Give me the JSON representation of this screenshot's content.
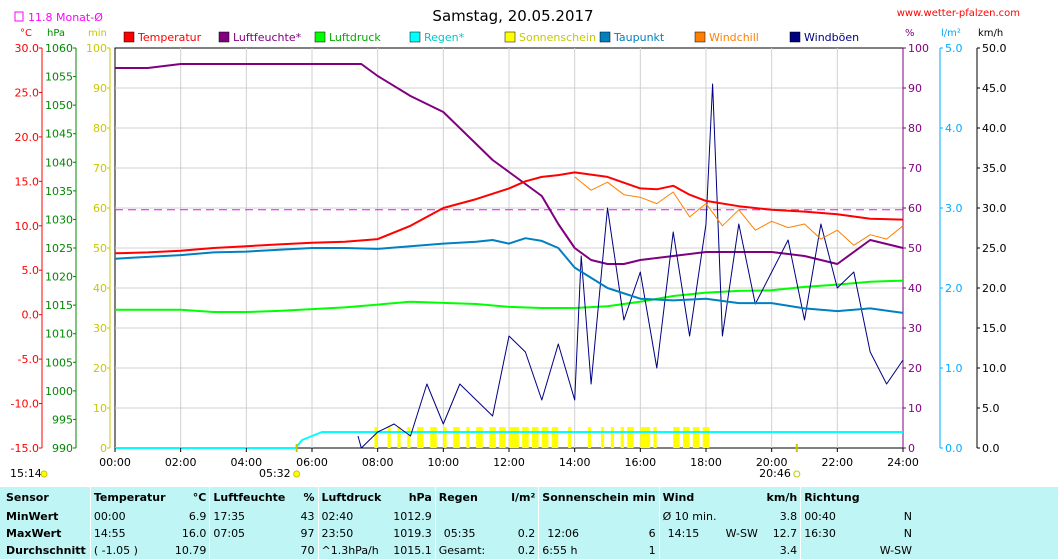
{
  "header": {
    "title": "Samstag, 20.05.2017",
    "site": "www.wetter-pfalzen.com",
    "month_avg": "11.8 Monat-Ø"
  },
  "units": {
    "temp": "°C",
    "press": "hPa",
    "sun": "min",
    "pct": "%",
    "rain": "l/m²",
    "wind": "km/h"
  },
  "legend": [
    {
      "label": "Temperatur",
      "color": "#ff0000"
    },
    {
      "label": "Luftfeuchte*",
      "color": "#800080"
    },
    {
      "label": "Luftdruck",
      "color": "#00ff00"
    },
    {
      "label": "Regen*",
      "color": "#00ffff"
    },
    {
      "label": "Sonnenschein",
      "color": "#ffff00"
    },
    {
      "label": "Taupunkt",
      "color": "#0080c0"
    },
    {
      "label": "Windchill",
      "color": "#ff8000"
    },
    {
      "label": "Windböen",
      "color": "#000080"
    }
  ],
  "axes": {
    "temp_ticks": [
      "30.0",
      "25.0",
      "20.0",
      "15.0",
      "10.0",
      "5.0",
      "0.0",
      "-5.0",
      "-10.0",
      "-15.0"
    ],
    "press_ticks": [
      "1060",
      "1055",
      "1050",
      "1045",
      "1040",
      "1035",
      "1030",
      "1025",
      "1020",
      "1015",
      "1010",
      "1005",
      "1000",
      "995",
      "990"
    ],
    "sun_ticks": [
      "100",
      "90",
      "80",
      "70",
      "60",
      "50",
      "40",
      "30",
      "20",
      "10",
      "0"
    ],
    "pct_ticks": [
      "100",
      "90",
      "80",
      "70",
      "60",
      "50",
      "40",
      "30",
      "20",
      "10",
      "0"
    ],
    "rain_ticks": [
      "5.0",
      "4.0",
      "3.0",
      "2.0",
      "1.0",
      "0.0"
    ],
    "wind_ticks": [
      "50.0",
      "45.0",
      "40.0",
      "35.0",
      "30.0",
      "25.0",
      "20.0",
      "15.0",
      "10.0",
      "5.0",
      "0.0"
    ],
    "time_ticks": [
      "00:00",
      "02:00",
      "04:00",
      "06:00",
      "08:00",
      "10:00",
      "12:00",
      "14:00",
      "16:00",
      "18:00",
      "20:00",
      "22:00",
      "24:00"
    ],
    "sunrise": "05:32",
    "sunset": "20:46",
    "time_now": "15:14"
  },
  "chart_data": {
    "type": "line",
    "title": "Samstag, 20.05.2017",
    "x_unit": "hour",
    "xlim": [
      0,
      24
    ],
    "temp_range": [
      -15,
      30
    ],
    "press_range": [
      990,
      1060
    ],
    "pct_range": [
      0,
      100
    ],
    "rain_range": [
      0,
      5
    ],
    "wind_range": [
      0,
      50
    ],
    "month_avg_temp": 11.8,
    "series": [
      {
        "name": "Temperatur",
        "color": "#ff0000",
        "axis": "temp",
        "x": [
          0,
          1,
          2,
          3,
          4,
          5,
          6,
          7,
          8,
          9,
          10,
          11,
          12,
          12.5,
          13,
          13.5,
          14,
          15,
          16,
          16.5,
          17,
          17.5,
          18,
          19,
          20,
          21,
          22,
          23,
          24
        ],
        "y": [
          6.9,
          7.0,
          7.2,
          7.5,
          7.7,
          7.9,
          8.1,
          8.2,
          8.5,
          10.0,
          12.0,
          13.0,
          14.2,
          15.0,
          15.5,
          15.7,
          16.0,
          15.5,
          14.2,
          14.1,
          14.5,
          13.5,
          12.8,
          12.2,
          11.8,
          11.6,
          11.3,
          10.8,
          10.7
        ]
      },
      {
        "name": "Luftfeuchte*",
        "color": "#800080",
        "axis": "pct",
        "x": [
          0,
          1,
          2,
          3,
          4,
          5,
          6,
          7,
          7.5,
          8,
          9,
          10,
          11,
          11.5,
          12,
          12.5,
          13,
          13.5,
          14,
          14.5,
          15,
          15.5,
          16,
          17,
          18,
          19,
          20,
          21,
          22,
          23,
          24
        ],
        "y": [
          95,
          95,
          96,
          96,
          96,
          96,
          96,
          96,
          96,
          93,
          88,
          84,
          76,
          72,
          69,
          66,
          63,
          56,
          50,
          47,
          46,
          46,
          47,
          48,
          49,
          49,
          49,
          48,
          46,
          52,
          50
        ]
      },
      {
        "name": "Luftdruck",
        "color": "#00ff00",
        "axis": "press",
        "x": [
          0,
          1,
          2,
          3,
          4,
          5,
          6,
          7,
          8,
          9,
          10,
          11,
          12,
          13,
          14,
          15,
          16,
          17,
          18,
          19,
          20,
          21,
          22,
          23,
          24
        ],
        "y": [
          1014.2,
          1014.2,
          1014.2,
          1013.8,
          1013.8,
          1014.0,
          1014.3,
          1014.6,
          1015.1,
          1015.6,
          1015.4,
          1015.2,
          1014.7,
          1014.5,
          1014.5,
          1014.8,
          1015.6,
          1016.6,
          1017.2,
          1017.5,
          1017.6,
          1018.2,
          1018.6,
          1019.1,
          1019.3
        ]
      },
      {
        "name": "Regen*",
        "color": "#00ffff",
        "axis": "rain",
        "x": [
          0,
          5.5,
          5.7,
          6,
          6.3,
          7,
          8,
          12,
          16,
          20,
          24
        ],
        "y": [
          0,
          0,
          0.1,
          0.15,
          0.2,
          0.2,
          0.2,
          0.2,
          0.2,
          0.2,
          0.2
        ]
      },
      {
        "name": "Taupunkt",
        "color": "#0080c0",
        "axis": "temp",
        "x": [
          0,
          1,
          2,
          3,
          4,
          5,
          6,
          7,
          8,
          9,
          10,
          11,
          11.5,
          12,
          12.5,
          13,
          13.5,
          14,
          15,
          16,
          17,
          18,
          19,
          20,
          21,
          22,
          23,
          24
        ],
        "y": [
          6.3,
          6.5,
          6.7,
          7.0,
          7.1,
          7.3,
          7.5,
          7.5,
          7.4,
          7.7,
          8.0,
          8.2,
          8.4,
          8.0,
          8.6,
          8.3,
          7.5,
          5.3,
          3.0,
          1.8,
          1.6,
          1.8,
          1.3,
          1.3,
          0.7,
          0.4,
          0.7,
          0.2
        ]
      },
      {
        "name": "Windchill",
        "color": "#ff8000",
        "axis": "temp",
        "x": [
          14,
          14.5,
          15,
          15.5,
          16,
          16.5,
          17,
          17.5,
          18,
          18.5,
          19,
          19.5,
          20,
          20.5,
          21,
          21.5,
          22,
          22.5,
          23,
          23.5,
          24
        ],
        "y": [
          15.5,
          14.0,
          14.9,
          13.5,
          13.2,
          12.5,
          13.8,
          11.0,
          12.5,
          10.0,
          11.8,
          9.5,
          10.5,
          9.8,
          10.2,
          8.5,
          9.5,
          7.8,
          9.0,
          8.5,
          10.0
        ]
      },
      {
        "name": "Windböen",
        "color": "#000080",
        "axis": "wind",
        "x": [
          7.4,
          7.5,
          8,
          8.5,
          9,
          9.5,
          10,
          10.5,
          11,
          11.5,
          12,
          12.5,
          13,
          13.5,
          14,
          14.2,
          14.5,
          15,
          15.5,
          16,
          16.5,
          17,
          17.5,
          18,
          18.2,
          18.5,
          19,
          19.5,
          20,
          20.5,
          21,
          21.5,
          22,
          22.5,
          23,
          23.5,
          24
        ],
        "y": [
          1.5,
          0,
          2.0,
          3.0,
          1.5,
          8.0,
          3.0,
          8.0,
          6.0,
          4.0,
          14.0,
          12.0,
          6.0,
          13.0,
          6.0,
          24.0,
          8.0,
          30.0,
          16.0,
          22.0,
          10.0,
          27.0,
          14.0,
          28.0,
          45.5,
          14.0,
          28.0,
          18.0,
          22.0,
          26.0,
          16.0,
          28.0,
          20.0,
          22.0,
          12.0,
          8.0,
          11.0
        ]
      }
    ],
    "sunshine_hours": [
      [
        7.9,
        8.0
      ],
      [
        8.3,
        8.4
      ],
      [
        8.6,
        8.7
      ],
      [
        8.9,
        9.0
      ],
      [
        9.2,
        9.4
      ],
      [
        9.6,
        9.8
      ],
      [
        10.0,
        10.1
      ],
      [
        10.3,
        10.5
      ],
      [
        10.7,
        10.8
      ],
      [
        11.0,
        11.2
      ],
      [
        11.4,
        11.6
      ],
      [
        11.7,
        11.9
      ],
      [
        12.0,
        12.3
      ],
      [
        12.4,
        12.6
      ],
      [
        12.7,
        12.9
      ],
      [
        13.0,
        13.2
      ],
      [
        13.3,
        13.5
      ],
      [
        13.8,
        13.9
      ],
      [
        14.4,
        14.5
      ],
      [
        14.8,
        14.9
      ],
      [
        15.1,
        15.2
      ],
      [
        15.4,
        15.5
      ],
      [
        15.6,
        15.8
      ],
      [
        16.0,
        16.3
      ],
      [
        16.4,
        16.5
      ],
      [
        17.0,
        17.2
      ],
      [
        17.3,
        17.5
      ],
      [
        17.6,
        17.8
      ],
      [
        17.9,
        18.1
      ]
    ]
  },
  "stats": {
    "headers": [
      {
        "label": "Sensor",
        "unit": ""
      },
      {
        "label": "Temperatur",
        "unit": "°C"
      },
      {
        "label": "Luftfeuchte",
        "unit": "%"
      },
      {
        "label": "Luftdruck",
        "unit": "hPa"
      },
      {
        "label": "Regen",
        "unit": "l/m²"
      },
      {
        "label": "Sonnenschein min",
        "unit": ""
      },
      {
        "label": "Wind",
        "unit": "km/h"
      },
      {
        "label": "Richtung",
        "unit": ""
      }
    ],
    "rows": [
      {
        "label": "MinWert",
        "temp_time": "00:00",
        "temp_val": "6.9",
        "hum_time": "17:35",
        "hum_val": "43",
        "press_time": "02:40",
        "press_val": "1012.9",
        "rain_time": "",
        "rain_val": "",
        "sun_time": "",
        "sun_val": "",
        "wind_time": "Ø 10 min.",
        "wind_dir": "",
        "wind_val": "3.8",
        "dir_time": "00:40",
        "dir_val": "N"
      },
      {
        "label": "MaxWert",
        "temp_time": "14:55",
        "temp_val": "16.0",
        "hum_time": "07:05",
        "hum_val": "97",
        "press_time": "23:50",
        "press_val": "1019.3",
        "rain_time": "05:35",
        "rain_val": "0.2",
        "sun_time": "12:06",
        "sun_val": "6",
        "wind_time": "14:15",
        "wind_dir": "W-SW",
        "wind_val": "12.7",
        "dir_time": "16:30",
        "dir_val": "N"
      },
      {
        "label": "Durchschnitt",
        "temp_time": "( -1.05 )",
        "temp_val": "10.79",
        "hum_time": "",
        "hum_val": "70",
        "press_time": "^1.3hPa/h",
        "press_val": "1015.1",
        "rain_time": "Gesamt:",
        "rain_val": "0.2",
        "sun_time": "6:55 h",
        "sun_val": "1",
        "wind_time": "",
        "wind_dir": "",
        "wind_val": "3.4",
        "dir_time": "",
        "dir_val": "W-SW"
      }
    ]
  }
}
